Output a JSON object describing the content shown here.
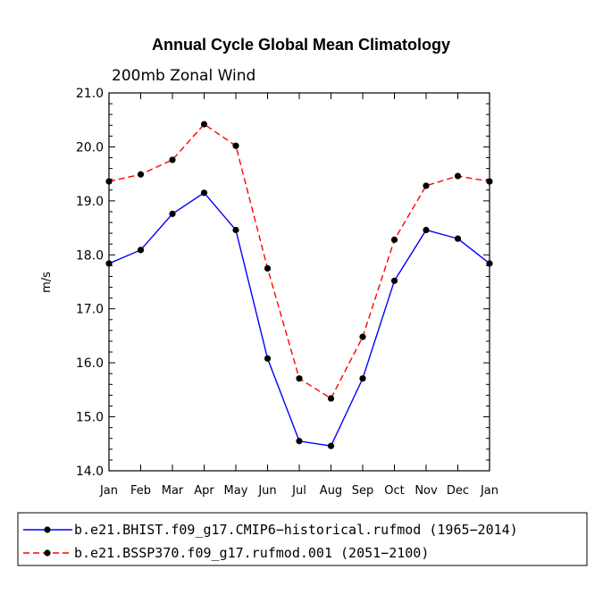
{
  "chart_data": {
    "type": "line",
    "title": "Annual Cycle Global Mean Climatology",
    "subtitle": "200mb Zonal Wind",
    "xlabel": "",
    "ylabel": "m/s",
    "categories": [
      "Jan",
      "Feb",
      "Mar",
      "Apr",
      "May",
      "Jun",
      "Jul",
      "Aug",
      "Sep",
      "Oct",
      "Nov",
      "Dec",
      "Jan"
    ],
    "ylim": [
      14.0,
      21.0
    ],
    "yticks": [
      "14.0",
      "15.0",
      "16.0",
      "17.0",
      "18.0",
      "19.0",
      "20.0",
      "21.0"
    ],
    "grid": false,
    "series": [
      {
        "name": "b.e21.BHIST.f09_g17.CMIP6-historical.rufmod (1965-2014)",
        "legend_label": "b.e21.BHIST.f09_g17.CMIP6−historical.rufmod (1965−2014)",
        "color": "#0000ff",
        "style": "solid",
        "values": [
          17.84,
          18.09,
          18.76,
          19.15,
          18.46,
          16.08,
          14.55,
          14.46,
          15.71,
          17.52,
          18.46,
          18.3,
          17.84
        ]
      },
      {
        "name": "b.e21.BSSP370.f09_g17.rufmod.001 (2051-2100)",
        "legend_label": "b.e21.BSSP370.f09_g17.rufmod.001 (2051−2100)",
        "color": "#ff0000",
        "style": "dashed",
        "values": [
          19.36,
          19.49,
          19.76,
          20.42,
          20.02,
          17.75,
          15.71,
          15.34,
          16.48,
          18.28,
          19.28,
          19.46,
          19.36
        ]
      }
    ],
    "legend_position": "bottom"
  }
}
